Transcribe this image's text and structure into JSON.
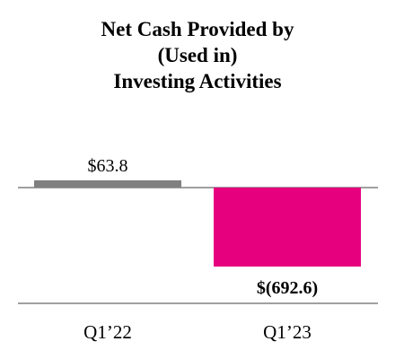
{
  "chart_data": {
    "type": "bar",
    "title_lines": [
      "Net Cash Provided by",
      "(Used in)",
      "Investing Activities"
    ],
    "categories": [
      "Q1’22",
      "Q1’23"
    ],
    "values": [
      63.8,
      -692.6
    ],
    "value_labels": [
      "$63.8",
      "$(692.6)"
    ],
    "bar_colors": [
      "#808080",
      "#e6007e"
    ],
    "xlabel": "",
    "ylabel": "",
    "grid": false,
    "legend": "none"
  }
}
